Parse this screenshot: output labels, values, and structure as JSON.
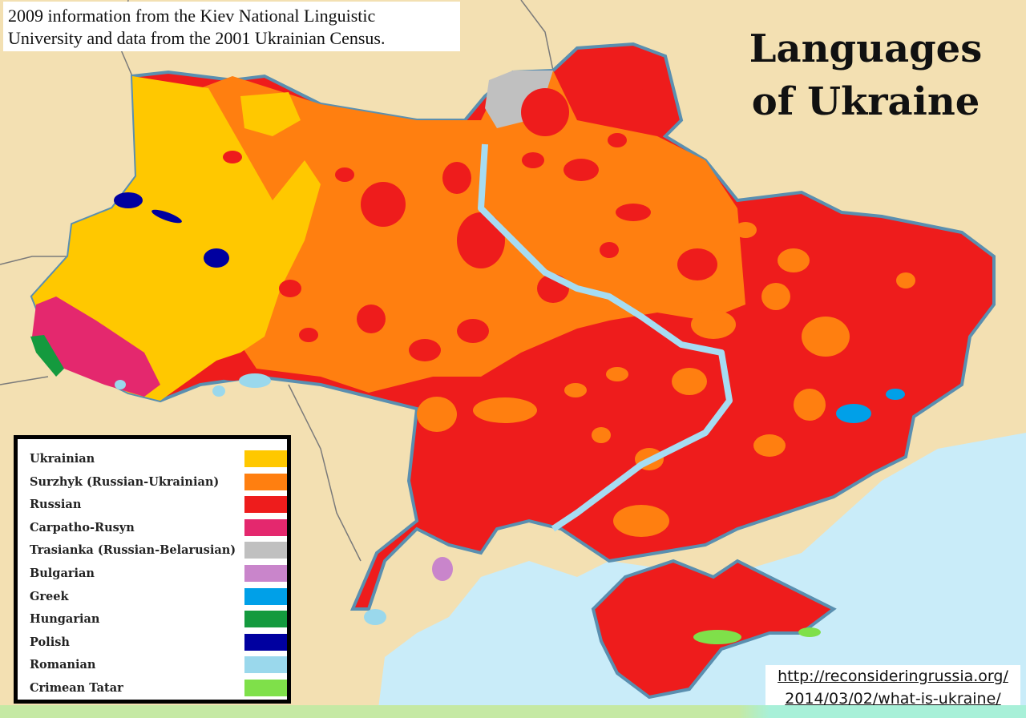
{
  "credit": {
    "line1": "2009 information from the Kiev National Linguistic",
    "line2": "University and data from the 2001 Ukrainian Census."
  },
  "title": {
    "line1": "Languages",
    "line2": "of Ukraine"
  },
  "legend": [
    {
      "label": "Ukrainian",
      "color": "#ffc800"
    },
    {
      "label": "Surzhyk (Russian-Ukrainian)",
      "color": "#ff7f10"
    },
    {
      "label": "Russian",
      "color": "#ee1c1c"
    },
    {
      "label": "Carpatho-Rusyn",
      "color": "#e4286e"
    },
    {
      "label": "Trasianka (Russian-Belarusian)",
      "color": "#c0c0c0"
    },
    {
      "label": "Bulgarian",
      "color": "#c985cb"
    },
    {
      "label": "Greek",
      "color": "#00a0e8"
    },
    {
      "label": "Hungarian",
      "color": "#149a3e"
    },
    {
      "label": "Polish",
      "color": "#0000a0"
    },
    {
      "label": "Romanian",
      "color": "#9ad8ec"
    },
    {
      "label": "Crimean Tatar",
      "color": "#7fe04a"
    }
  ],
  "colors": {
    "land_background": "#f3e0b2",
    "sea": "#c9ecf9",
    "border": "#5a8fb0"
  },
  "source_url": {
    "line1": "http://reconsideringrussia.org/",
    "line2": "2014/03/02/what-is-ukraine/"
  }
}
